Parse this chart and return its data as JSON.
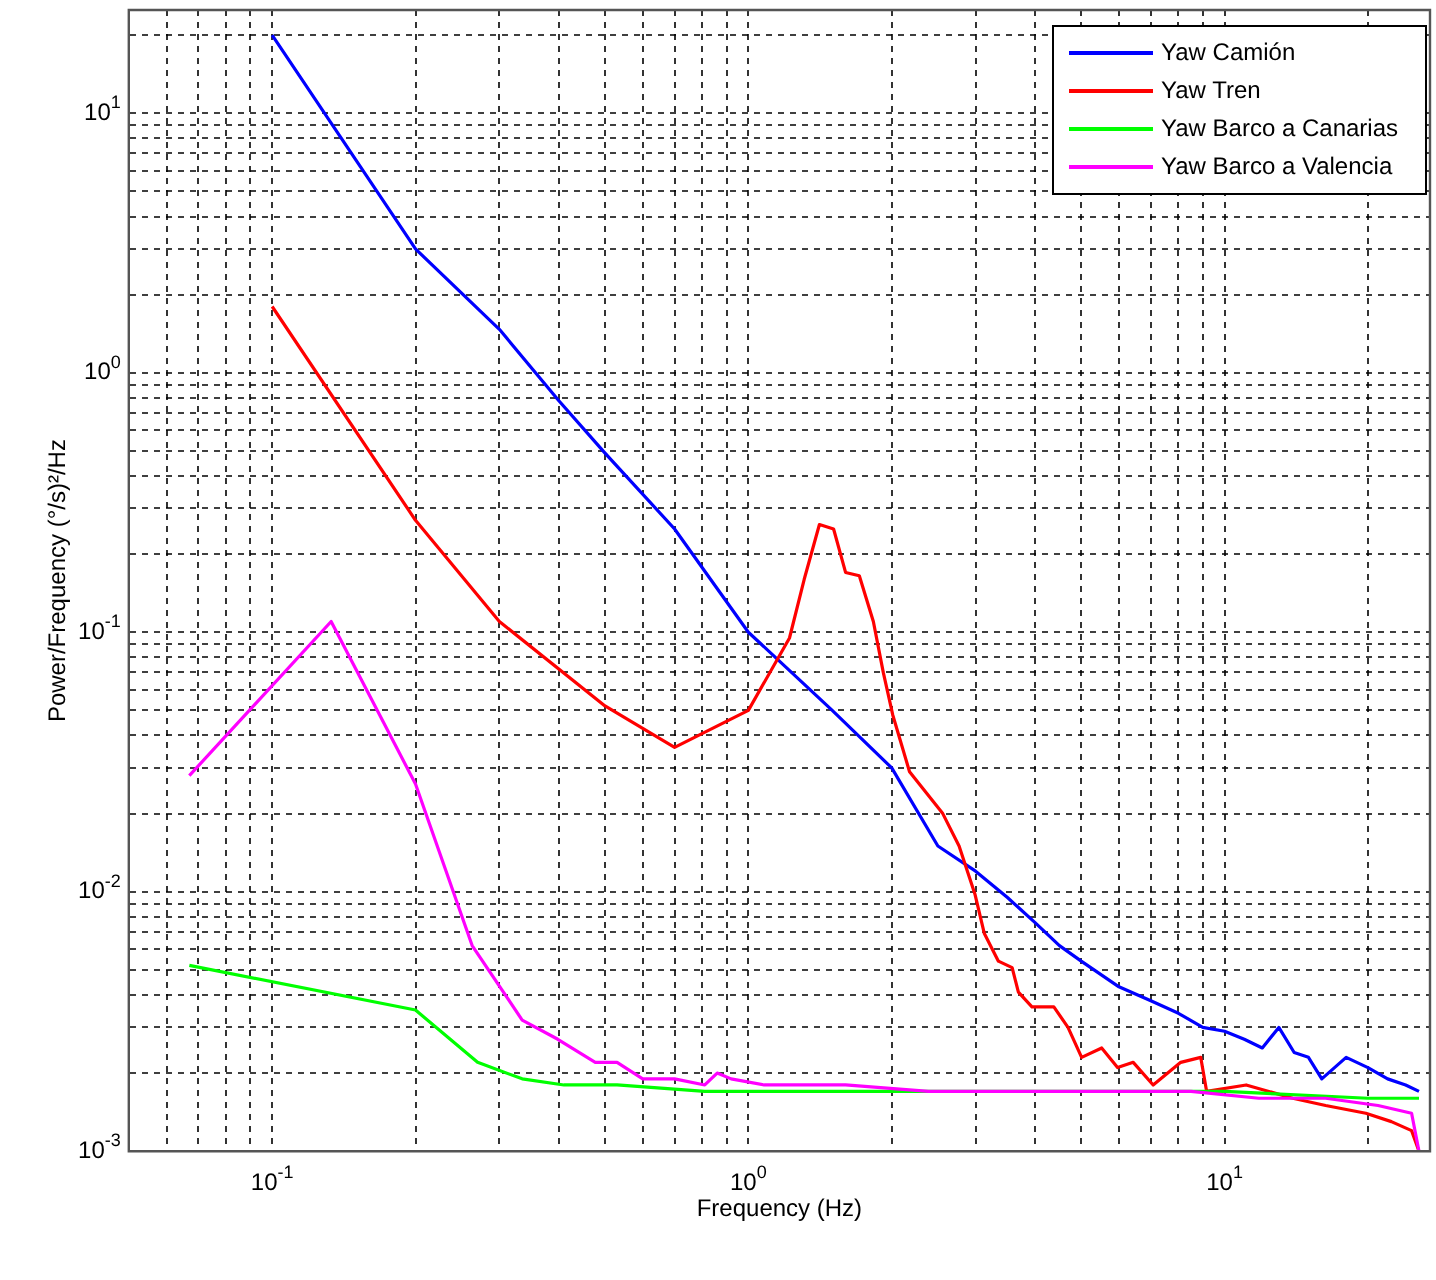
{
  "chart_data": {
    "type": "line",
    "xlabel": "Frequency (Hz)",
    "ylabel": "Power/Frequency (°/s)²/Hz",
    "log": "xy",
    "grid": true,
    "legend": "top right",
    "line_style": "solid",
    "marker": "none",
    "xlim": [
      0.05,
      27
    ],
    "ylim": [
      0.001,
      25
    ],
    "xticks": [
      {
        "value": 0.05,
        "label": null
      },
      {
        "value": 0.06,
        "label": null
      },
      {
        "value": 0.07,
        "label": null
      },
      {
        "value": 0.08,
        "label": null
      },
      {
        "value": 0.09,
        "label": null
      },
      {
        "value": 0.1,
        "label": "10$^{-1}$"
      },
      {
        "value": 0.2,
        "label": null
      },
      {
        "value": 0.3,
        "label": null
      },
      {
        "value": 0.4,
        "label": null
      },
      {
        "value": 0.5,
        "label": null
      },
      {
        "value": 0.6,
        "label": null
      },
      {
        "value": 0.7,
        "label": null
      },
      {
        "value": 0.8,
        "label": null
      },
      {
        "value": 0.9,
        "label": null
      },
      {
        "value": 1,
        "label": "10$^{0}$"
      },
      {
        "value": 2,
        "label": null
      },
      {
        "value": 3,
        "label": null
      },
      {
        "value": 4,
        "label": null
      },
      {
        "value": 5,
        "label": null
      },
      {
        "value": 6,
        "label": null
      },
      {
        "value": 7,
        "label": null
      },
      {
        "value": 8,
        "label": null
      },
      {
        "value": 9,
        "label": null
      },
      {
        "value": 10,
        "label": "10$^{1}$"
      },
      {
        "value": 20,
        "label": null
      }
    ],
    "yticks": [
      {
        "value": 0.001,
        "label": "10$^{-3}$"
      },
      {
        "value": 0.002,
        "label": null
      },
      {
        "value": 0.003,
        "label": null
      },
      {
        "value": 0.004,
        "label": null
      },
      {
        "value": 0.005,
        "label": null
      },
      {
        "value": 0.006,
        "label": null
      },
      {
        "value": 0.007,
        "label": null
      },
      {
        "value": 0.008,
        "label": null
      },
      {
        "value": 0.009,
        "label": null
      },
      {
        "value": 0.01,
        "label": "10$^{-2}$"
      },
      {
        "value": 0.02,
        "label": null
      },
      {
        "value": 0.03,
        "label": null
      },
      {
        "value": 0.04,
        "label": null
      },
      {
        "value": 0.05,
        "label": null
      },
      {
        "value": 0.06,
        "label": null
      },
      {
        "value": 0.07,
        "label": null
      },
      {
        "value": 0.08,
        "label": null
      },
      {
        "value": 0.09,
        "label": null
      },
      {
        "value": 0.1,
        "label": "10$^{-1}$"
      },
      {
        "value": 0.2,
        "label": null
      },
      {
        "value": 0.3,
        "label": null
      },
      {
        "value": 0.4,
        "label": null
      },
      {
        "value": 0.5,
        "label": null
      },
      {
        "value": 0.6,
        "label": null
      },
      {
        "value": 0.7,
        "label": null
      },
      {
        "value": 0.8,
        "label": null
      },
      {
        "value": 0.9,
        "label": null
      },
      {
        "value": 1,
        "label": "10$^{0}$"
      },
      {
        "value": 2,
        "label": null
      },
      {
        "value": 3,
        "label": null
      },
      {
        "value": 4,
        "label": null
      },
      {
        "value": 5,
        "label": null
      },
      {
        "value": 6,
        "label": null
      },
      {
        "value": 7,
        "label": null
      },
      {
        "value": 8,
        "label": null
      },
      {
        "value": 9,
        "label": null
      },
      {
        "value": 10,
        "label": "10$^{1}$"
      },
      {
        "value": 20,
        "label": null
      }
    ],
    "series": [
      {
        "name": "Yaw Camión",
        "color": "#0000ff",
        "x": [
          0.1,
          0.2,
          0.3,
          0.4,
          0.5,
          0.7,
          1,
          1.5,
          2,
          2.5,
          3,
          3.5,
          4,
          4.5,
          5,
          6,
          7,
          8,
          9,
          10,
          11,
          12,
          13,
          14,
          15,
          16,
          18,
          20,
          22,
          24,
          25.6
        ],
        "values": [
          20,
          3,
          1.47,
          0.78,
          0.49,
          0.25,
          0.1,
          0.05,
          0.03,
          0.015,
          0.012,
          0.0095,
          0.0076,
          0.0062,
          0.0054,
          0.0043,
          0.0038,
          0.0034,
          0.003,
          0.0029,
          0.0027,
          0.0025,
          0.003,
          0.0024,
          0.0023,
          0.0019,
          0.0023,
          0.0021,
          0.0019,
          0.0018,
          0.0017
        ]
      },
      {
        "name": "Yaw Tren",
        "color": "#ff0000",
        "x": [
          0.1,
          0.2,
          0.3,
          0.5,
          0.7,
          1,
          1.22,
          1.31,
          1.41,
          1.51,
          1.6,
          1.71,
          1.83,
          1.92,
          2.01,
          2.18,
          2.56,
          2.77,
          2.99,
          3.13,
          3.35,
          3.58,
          3.69,
          3.94,
          4.38,
          4.69,
          5.01,
          5.52,
          5.96,
          6.43,
          7.08,
          8.09,
          8.91,
          9.17,
          11.1,
          13.9,
          16.3,
          19.8,
          22.4,
          24.7,
          25.6
        ],
        "values": [
          1.8,
          0.27,
          0.11,
          0.052,
          0.036,
          0.05,
          0.095,
          0.16,
          0.26,
          0.25,
          0.17,
          0.165,
          0.11,
          0.07,
          0.048,
          0.029,
          0.02,
          0.015,
          0.0098,
          0.0069,
          0.0054,
          0.0051,
          0.0041,
          0.0036,
          0.0036,
          0.003,
          0.0023,
          0.0025,
          0.0021,
          0.0022,
          0.0018,
          0.0022,
          0.0023,
          0.0017,
          0.0018,
          0.0016,
          0.0015,
          0.0014,
          0.0013,
          0.0012,
          0.001
        ]
      },
      {
        "name": "Yaw Barco a Canarias",
        "color": "#00ff00",
        "x": [
          0.067,
          0.2,
          0.27,
          0.335,
          0.41,
          0.53,
          0.81,
          1,
          2,
          5,
          10,
          20,
          25.6
        ],
        "values": [
          0.0052,
          0.0035,
          0.0022,
          0.0019,
          0.0018,
          0.0018,
          0.0017,
          0.0017,
          0.0017,
          0.0017,
          0.0017,
          0.0016,
          0.0016
        ]
      },
      {
        "name": "Yaw Barco a Valencia",
        "color": "#ff00ff",
        "x": [
          0.067,
          0.133,
          0.2,
          0.263,
          0.335,
          0.398,
          0.477,
          0.53,
          0.6,
          0.7,
          0.81,
          0.86,
          0.92,
          1.08,
          1.28,
          1.6,
          2.39,
          3.3,
          4.5,
          6.2,
          8.5,
          11.8,
          16.3,
          21,
          24.7,
          25.6
        ],
        "values": [
          0.028,
          0.11,
          0.026,
          0.0062,
          0.0032,
          0.0027,
          0.0022,
          0.0022,
          0.0019,
          0.0019,
          0.0018,
          0.002,
          0.0019,
          0.0018,
          0.0018,
          0.0018,
          0.0017,
          0.0017,
          0.0017,
          0.0017,
          0.0017,
          0.0016,
          0.0016,
          0.0015,
          0.0014,
          0.001
        ]
      }
    ]
  }
}
